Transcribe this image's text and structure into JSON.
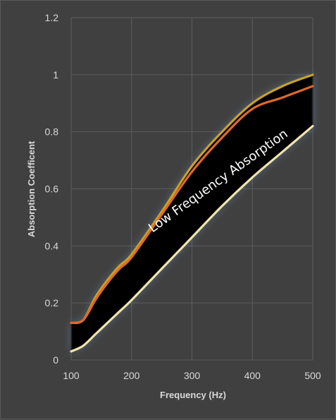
{
  "chart_data": {
    "type": "line",
    "title": "",
    "xlabel": "Frequency (Hz)",
    "ylabel": "Absorption Coefficent",
    "xlim": [
      100,
      500
    ],
    "ylim": [
      0,
      1.2
    ],
    "x_ticks": [
      100,
      200,
      300,
      400,
      500
    ],
    "y_ticks": [
      0,
      0.2,
      0.4,
      0.6,
      0.8,
      1,
      1.2
    ],
    "x_tick_labels": [
      "100",
      "200",
      "300",
      "400",
      "500"
    ],
    "y_tick_labels": [
      "0",
      "0.2",
      "0.4",
      "0.6",
      "0.8",
      "1",
      "1.2"
    ],
    "grid": true,
    "legend": "none",
    "annotation": "Low Frequency Absorption",
    "band_color": "#000000",
    "series": [
      {
        "color": "#c9a227",
        "points": [
          [
            100,
            0.13
          ],
          [
            120,
            0.14
          ],
          [
            140,
            0.22
          ],
          [
            160,
            0.28
          ],
          [
            180,
            0.33
          ],
          [
            200,
            0.37
          ],
          [
            250,
            0.52
          ],
          [
            300,
            0.68
          ],
          [
            350,
            0.8
          ],
          [
            400,
            0.9
          ],
          [
            450,
            0.96
          ],
          [
            500,
            1.0
          ]
        ]
      },
      {
        "color": "#e0692a",
        "points": [
          [
            100,
            0.13
          ],
          [
            120,
            0.14
          ],
          [
            140,
            0.21
          ],
          [
            160,
            0.27
          ],
          [
            180,
            0.32
          ],
          [
            200,
            0.36
          ],
          [
            250,
            0.51
          ],
          [
            300,
            0.66
          ],
          [
            350,
            0.78
          ],
          [
            400,
            0.88
          ],
          [
            450,
            0.92
          ],
          [
            500,
            0.96
          ]
        ]
      },
      {
        "color": "#f0e6b0",
        "points": [
          [
            100,
            0.03
          ],
          [
            120,
            0.05
          ],
          [
            140,
            0.09
          ],
          [
            160,
            0.13
          ],
          [
            180,
            0.17
          ],
          [
            200,
            0.21
          ],
          [
            250,
            0.32
          ],
          [
            300,
            0.43
          ],
          [
            350,
            0.54
          ],
          [
            400,
            0.64
          ],
          [
            450,
            0.73
          ],
          [
            500,
            0.82
          ]
        ]
      }
    ]
  }
}
